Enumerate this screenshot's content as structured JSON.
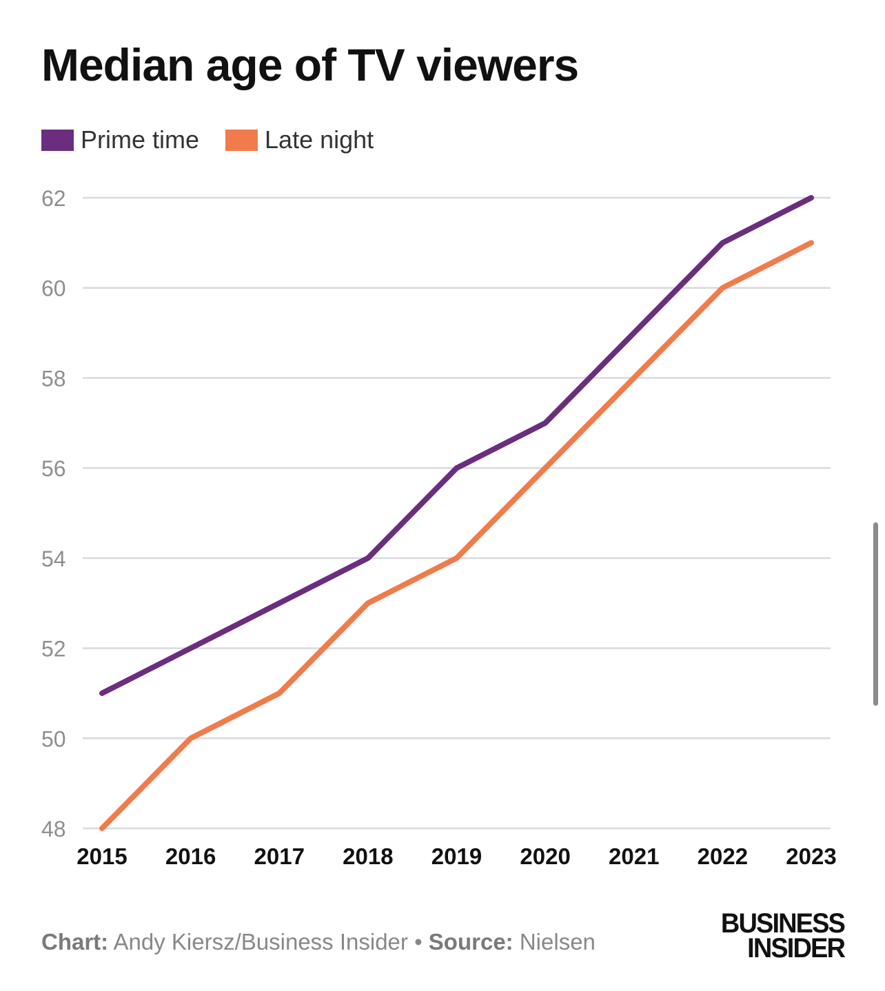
{
  "chart_data": {
    "type": "line",
    "title": "Median age of TV viewers",
    "xlabel": "",
    "ylabel": "",
    "x": [
      "2015",
      "2016",
      "2017",
      "2018",
      "2019",
      "2020",
      "2021",
      "2022",
      "2023"
    ],
    "y_ticks": [
      "48",
      "50",
      "52",
      "54",
      "56",
      "58",
      "60",
      "62"
    ],
    "ylim": [
      48,
      62
    ],
    "grid": true,
    "legend_position": "top-left",
    "series": [
      {
        "name": "Prime time",
        "color": "#6b2d7e",
        "values": [
          51,
          52,
          53,
          54,
          56,
          57,
          59,
          61,
          62
        ]
      },
      {
        "name": "Late night",
        "color": "#f07c4b",
        "values": [
          48,
          50,
          51,
          53,
          54,
          56,
          58,
          60,
          61
        ]
      }
    ]
  },
  "footer": {
    "chart_label": "Chart:",
    "chart_credit": "Andy Kiersz/Business Insider",
    "separator": "•",
    "source_label": "Source:",
    "source_value": "Nielsen"
  },
  "logo": {
    "line1": "BUSINESS",
    "line2": "INSIDER"
  }
}
